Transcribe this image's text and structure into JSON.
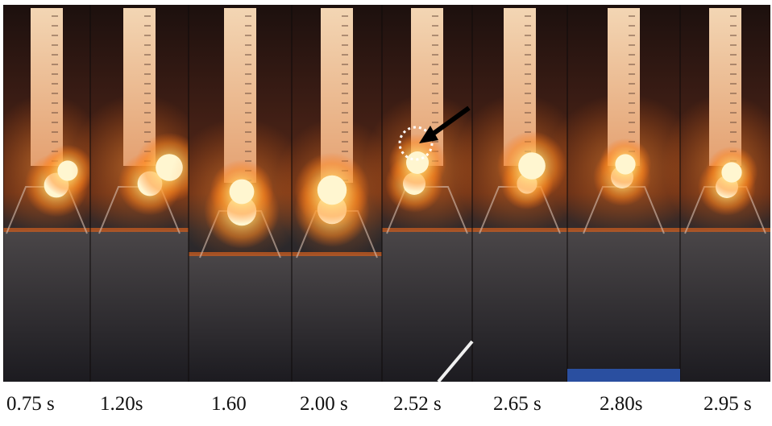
{
  "figure": {
    "frames": [
      {
        "time_label": "0.75 s"
      },
      {
        "time_label": "1.20s"
      },
      {
        "time_label": "1.60"
      },
      {
        "time_label": "2.00 s"
      },
      {
        "time_label": "2.52 s"
      },
      {
        "time_label": "2.65 s"
      },
      {
        "time_label": "2.80s"
      },
      {
        "time_label": "2.95 s"
      }
    ],
    "colors": {
      "background_dark": "#2a1a16",
      "glow_core": "#fff4c8",
      "glow_outer": "#ff7a1a",
      "ruler": "#e8c9a4",
      "furnace_floor": "#3b3a3e",
      "arrow": "#000000",
      "highlight_circle": "#ffffff"
    }
  }
}
